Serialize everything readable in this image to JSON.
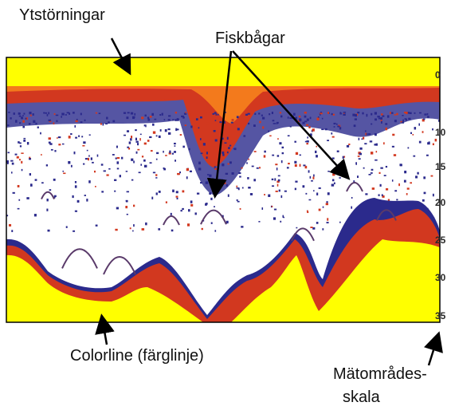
{
  "labels": {
    "surface": "Ytstörningar",
    "fish": "Fiskbågar",
    "colorline": "Colorline (färglinje)",
    "scale": [
      "Mätområdes-",
      "skala"
    ]
  },
  "depth_scale": [
    "0",
    "10",
    "15",
    "20",
    "25",
    "30",
    "35"
  ]
}
